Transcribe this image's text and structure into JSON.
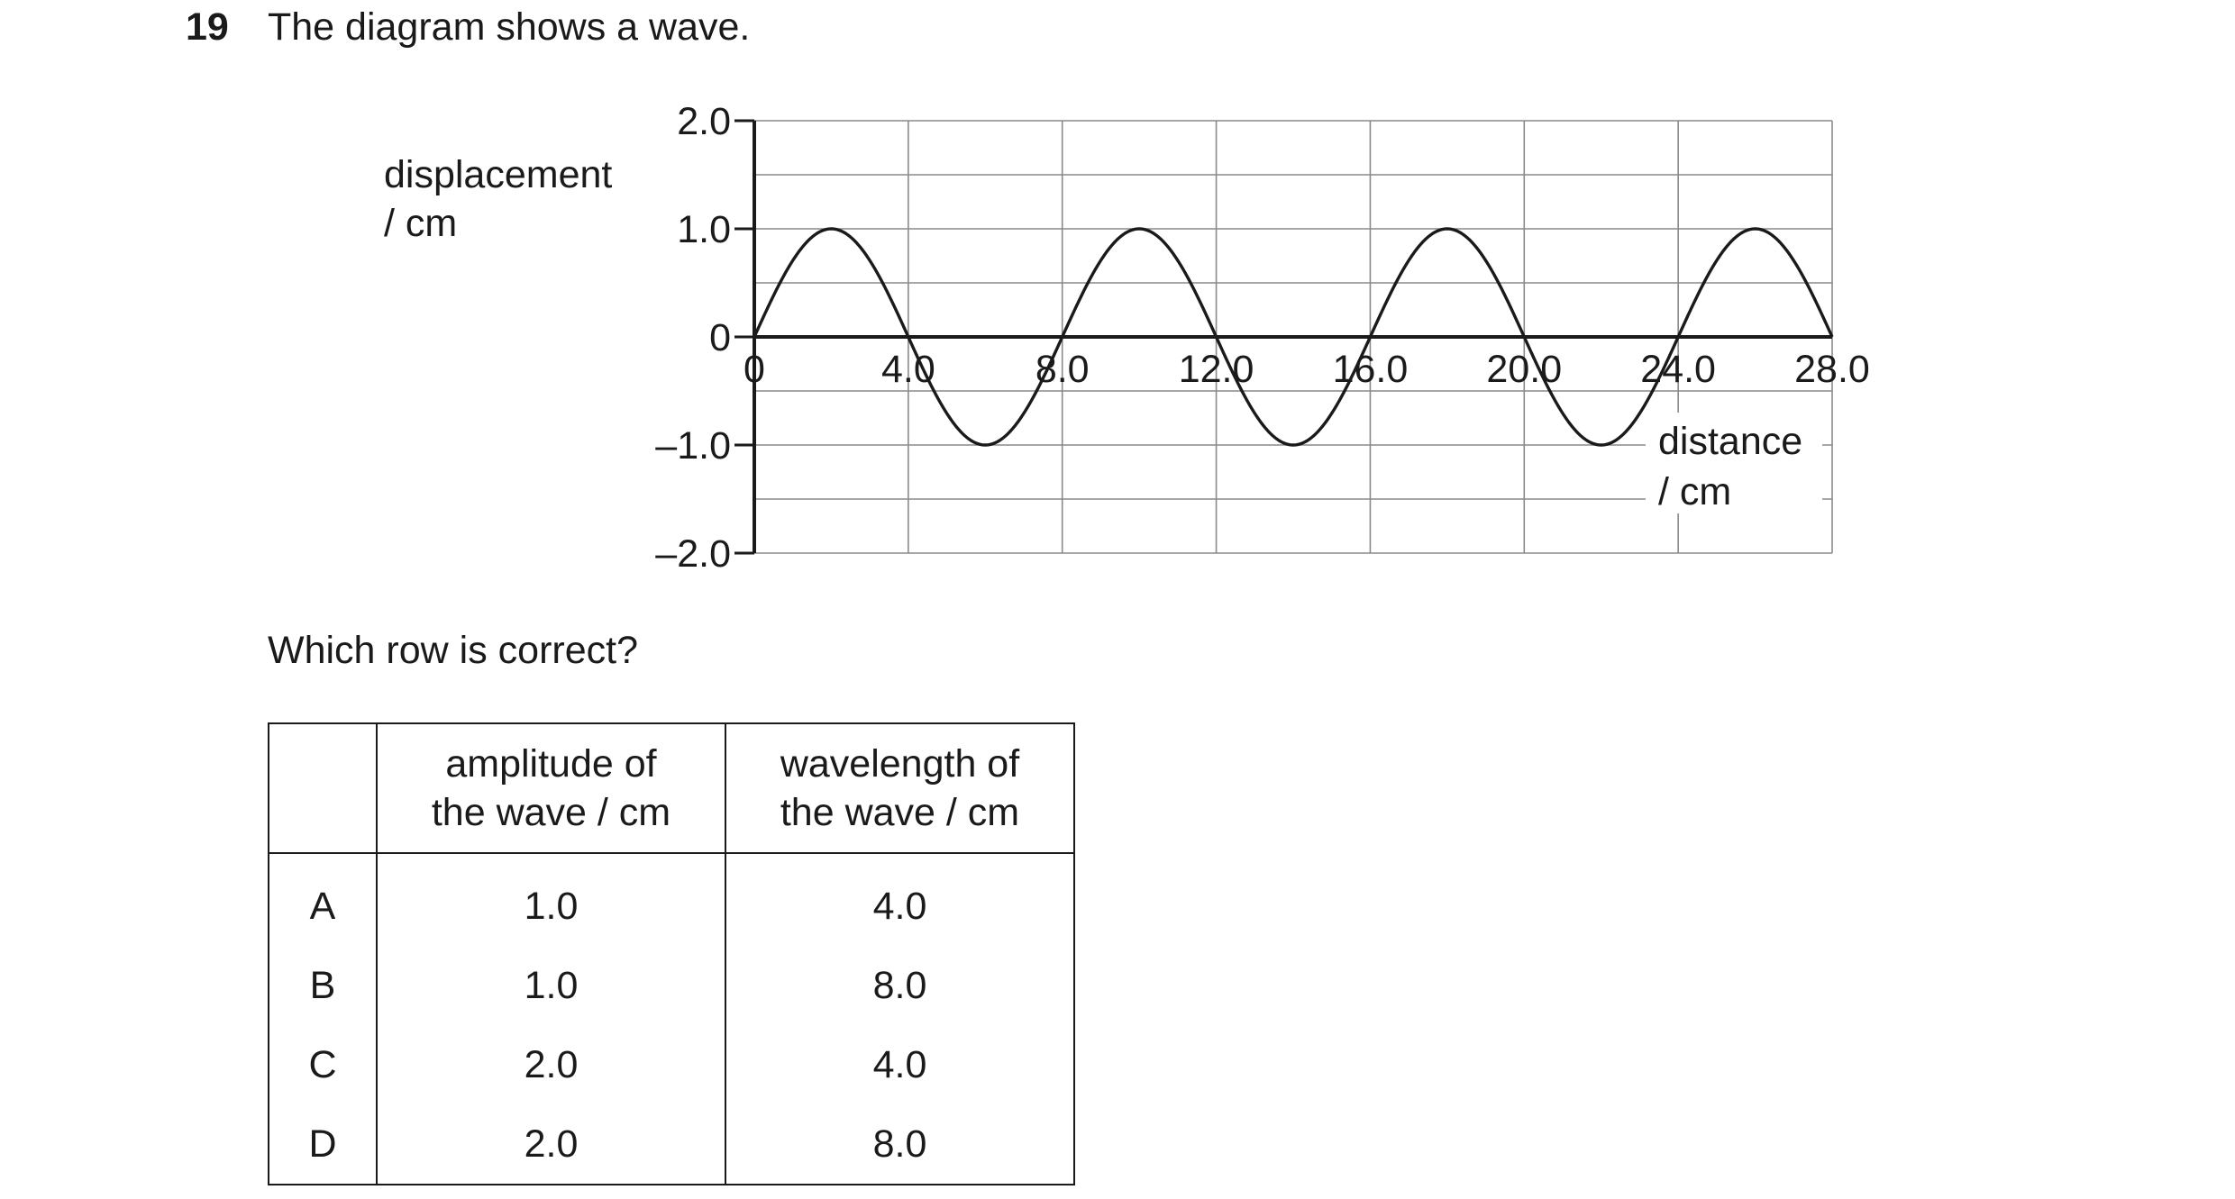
{
  "question": {
    "number": "19",
    "text": "The diagram shows a wave."
  },
  "chart_data": {
    "type": "line",
    "ylabel_line1": "displacement",
    "ylabel_line2": "/ cm",
    "xlabel_line1": "distance",
    "xlabel_line2": "/ cm",
    "x_ticks": [
      "0",
      "4.0",
      "8.0",
      "12.0",
      "16.0",
      "20.0",
      "24.0",
      "28.0"
    ],
    "y_ticks": [
      "2.0",
      "1.0",
      "0",
      "–1.0",
      "–2.0"
    ],
    "xlim": [
      0,
      28
    ],
    "ylim": [
      -2,
      2
    ],
    "grid": true,
    "series": [
      {
        "function": "sine",
        "amplitude": 1.0,
        "wavelength": 8.0,
        "x": [
          0,
          2,
          4,
          6,
          8,
          10,
          12,
          14,
          16,
          18,
          20,
          22,
          24,
          26,
          28
        ],
        "y": [
          0,
          1,
          0,
          -1,
          0,
          1,
          0,
          -1,
          0,
          1,
          0,
          -1,
          0,
          1,
          0
        ]
      }
    ]
  },
  "prompt": "Which row is correct?",
  "table": {
    "header": [
      "",
      "amplitude of the wave / cm",
      "wavelength of the wave / cm"
    ],
    "header_line1": [
      "",
      "amplitude of",
      "wavelength of"
    ],
    "header_line2": [
      "",
      "the wave / cm",
      "the wave / cm"
    ],
    "rows": [
      {
        "letter": "A",
        "amplitude": "1.0",
        "wavelength": "4.0"
      },
      {
        "letter": "B",
        "amplitude": "1.0",
        "wavelength": "8.0"
      },
      {
        "letter": "C",
        "amplitude": "2.0",
        "wavelength": "4.0"
      },
      {
        "letter": "D",
        "amplitude": "2.0",
        "wavelength": "8.0"
      }
    ]
  }
}
